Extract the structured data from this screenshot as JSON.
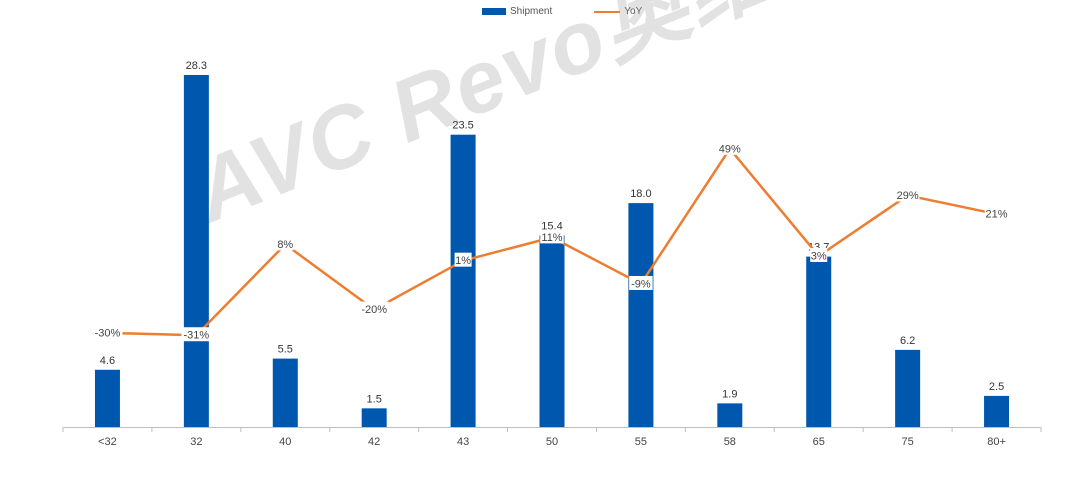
{
  "legend": {
    "bar_label": "Shipment",
    "line_label": "YoY"
  },
  "watermark": "AVC Revo奥维睿沃",
  "colors": {
    "bar": "#0057ae",
    "line": "#ed7d31",
    "axis": "#bfbfbf"
  },
  "chart_data": {
    "type": "bar",
    "categories": [
      "<32",
      "32",
      "40",
      "42",
      "43",
      "50",
      "55",
      "58",
      "65",
      "75",
      "80+"
    ],
    "series": [
      {
        "name": "Shipment",
        "type": "bar",
        "values": [
          4.6,
          28.3,
          5.5,
          1.5,
          23.5,
          15.4,
          18.0,
          1.9,
          13.7,
          6.2,
          2.5
        ],
        "labels": [
          "4.6",
          "28.3",
          "5.5",
          "1.5",
          "23.5",
          "15.4",
          "18.0",
          "1.9",
          "13.7",
          "6.2",
          "2.5"
        ]
      },
      {
        "name": "YoY",
        "type": "line",
        "values": [
          -30,
          -31,
          8,
          -20,
          1,
          11,
          -9,
          49,
          3,
          29,
          21
        ],
        "labels": [
          "-30%",
          "-31%",
          "8%",
          "-20%",
          "1%",
          "11%",
          "-9%",
          "49%",
          "3%",
          "29%",
          "21%"
        ]
      }
    ]
  }
}
